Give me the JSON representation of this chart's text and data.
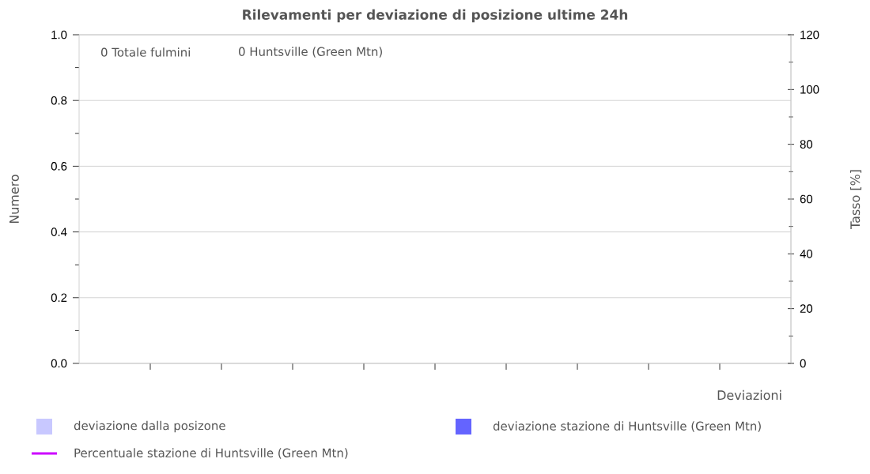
{
  "chart_data": {
    "type": "bar",
    "title": "Rilevamenti per deviazione di posizione ultime 24h",
    "xlabel": "Deviazioni",
    "ylabel": "Numero",
    "y2label": "Tasso [%]",
    "categories": [
      null,
      null,
      null,
      null,
      null,
      null,
      null,
      null,
      null,
      null
    ],
    "series": [
      {
        "name": "deviazione dalla posizone",
        "color": "#c8c8ff",
        "values": [
          0,
          0,
          0,
          0,
          0,
          0,
          0,
          0,
          0,
          0
        ]
      },
      {
        "name": "deviazione stazione di Huntsville (Green Mtn)",
        "color": "#6464ff",
        "values": [
          0,
          0,
          0,
          0,
          0,
          0,
          0,
          0,
          0,
          0
        ]
      },
      {
        "name": "Percentuale stazione di Huntsville (Green Mtn)",
        "type": "line",
        "color": "#cc00ff",
        "values": [
          null,
          null,
          null,
          null,
          null,
          null,
          null,
          null,
          null,
          null
        ]
      }
    ],
    "ylim": [
      0,
      1
    ],
    "yticks": [
      {
        "value": 0,
        "label": "0.0"
      },
      {
        "value": 0.1,
        "label": null
      },
      0.2,
      {
        "value": 0.3,
        "label": null
      },
      0.4,
      {
        "value": 0.5,
        "label": null
      },
      0.6,
      {
        "value": 0.7,
        "label": null
      },
      0.8,
      {
        "value": 0.9,
        "label": null
      },
      {
        "value": 1,
        "label": "1.0"
      }
    ],
    "y2lim": [
      0,
      120
    ],
    "y2ticks": [
      0,
      {
        "value": 10,
        "label": null
      },
      20,
      {
        "value": 30,
        "label": null
      },
      40,
      {
        "value": 50,
        "label": null
      },
      60,
      {
        "value": 70,
        "label": null
      },
      80,
      {
        "value": 90,
        "label": null
      },
      100,
      {
        "value": 110,
        "label": null
      },
      120
    ],
    "annotations": [
      "0 Totale fulmini",
      "0 Huntsville (Green Mtn)"
    ],
    "grid": "y",
    "legend": "bottom"
  }
}
